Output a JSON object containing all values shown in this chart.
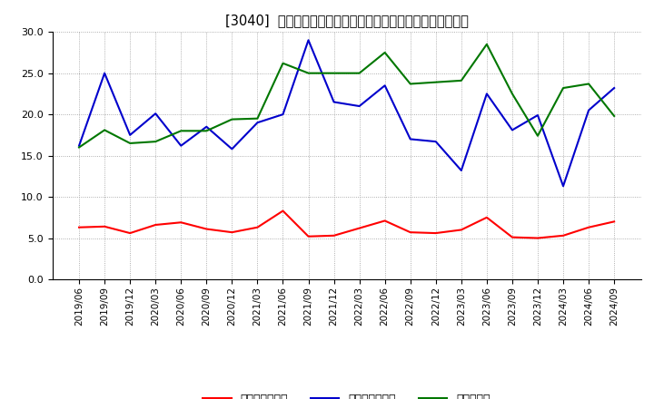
{
  "title": "[3040]  売上債権回転率、買入債務回転率、在庫回転率の推移",
  "dates": [
    "2019/06",
    "2019/09",
    "2019/12",
    "2020/03",
    "2020/06",
    "2020/09",
    "2020/12",
    "2021/03",
    "2021/06",
    "2021/09",
    "2021/12",
    "2022/03",
    "2022/06",
    "2022/09",
    "2022/12",
    "2023/03",
    "2023/06",
    "2023/09",
    "2023/12",
    "2024/03",
    "2024/06",
    "2024/09"
  ],
  "receivables_turnover": [
    6.3,
    6.4,
    5.6,
    6.6,
    6.9,
    6.1,
    5.7,
    6.3,
    8.3,
    5.2,
    5.3,
    6.2,
    7.1,
    5.7,
    5.6,
    6.0,
    7.5,
    5.1,
    5.0,
    5.3,
    6.3,
    7.0
  ],
  "payables_turnover": [
    16.2,
    25.0,
    17.5,
    20.1,
    16.2,
    18.5,
    15.8,
    19.0,
    20.0,
    29.0,
    21.5,
    21.0,
    23.5,
    17.0,
    16.7,
    13.2,
    22.5,
    18.1,
    19.9,
    11.3,
    20.5,
    23.2
  ],
  "inventory_turnover": [
    16.0,
    18.1,
    16.5,
    16.7,
    18.0,
    18.0,
    19.4,
    19.5,
    26.2,
    25.0,
    25.0,
    25.0,
    27.5,
    23.7,
    23.9,
    24.1,
    28.5,
    22.5,
    17.4,
    23.2,
    23.7,
    19.8
  ],
  "receivables_color": "#ff0000",
  "payables_color": "#0000cc",
  "inventory_color": "#007700",
  "legend_receivables": "売上債権回転率",
  "legend_payables": "買入債務回転率",
  "legend_inventory": "在庫回転率",
  "ylim": [
    0.0,
    30.0
  ],
  "yticks": [
    0.0,
    5.0,
    10.0,
    15.0,
    20.0,
    25.0,
    30.0
  ],
  "background_color": "#ffffff",
  "grid_color": "#999999"
}
